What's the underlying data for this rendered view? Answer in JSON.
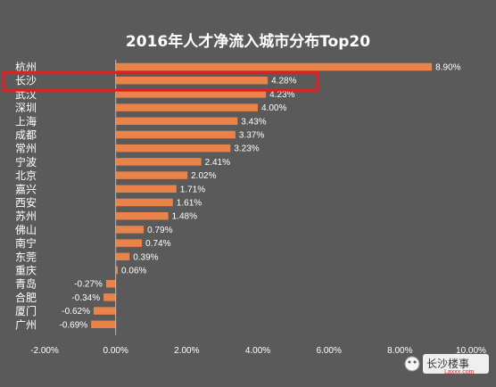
{
  "chart_data": {
    "type": "bar",
    "orientation": "horizontal",
    "title": "2016年人才净流入城市分布Top20",
    "categories": [
      "杭州",
      "长沙",
      "武汉",
      "深圳",
      "上海",
      "成都",
      "常州",
      "宁波",
      "北京",
      "嘉兴",
      "西安",
      "苏州",
      "佛山",
      "南宁",
      "东莞",
      "重庆",
      "青岛",
      "合肥",
      "厦门",
      "广州"
    ],
    "values": [
      8.9,
      4.28,
      4.23,
      4.0,
      3.43,
      3.37,
      3.23,
      2.41,
      2.02,
      1.71,
      1.61,
      1.48,
      0.79,
      0.74,
      0.39,
      0.06,
      -0.27,
      -0.34,
      -0.62,
      -0.69
    ],
    "value_labels": [
      "8.90%",
      "4.28%",
      "4.23%",
      "4.00%",
      "3.43%",
      "3.37%",
      "3.23%",
      "2.41%",
      "2.02%",
      "1.71%",
      "1.61%",
      "1.48%",
      "0.79%",
      "0.74%",
      "0.39%",
      "0.06%",
      "-0.27%",
      "-0.34%",
      "-0.62%",
      "-0.69%"
    ],
    "xlim": [
      -2,
      10
    ],
    "x_ticks": [
      -2,
      0,
      2,
      4,
      6,
      8,
      10
    ],
    "x_tick_labels": [
      "-2.00%",
      "0.00%",
      "2.00%",
      "4.00%",
      "6.00%",
      "8.00%",
      "10.00%"
    ],
    "highlighted_category": "长沙",
    "bar_color": "#e9834a",
    "highlight_color": "#e02020",
    "grid": false
  },
  "watermark": {
    "text": "长沙楼事",
    "sub": "Laxxx.com"
  }
}
